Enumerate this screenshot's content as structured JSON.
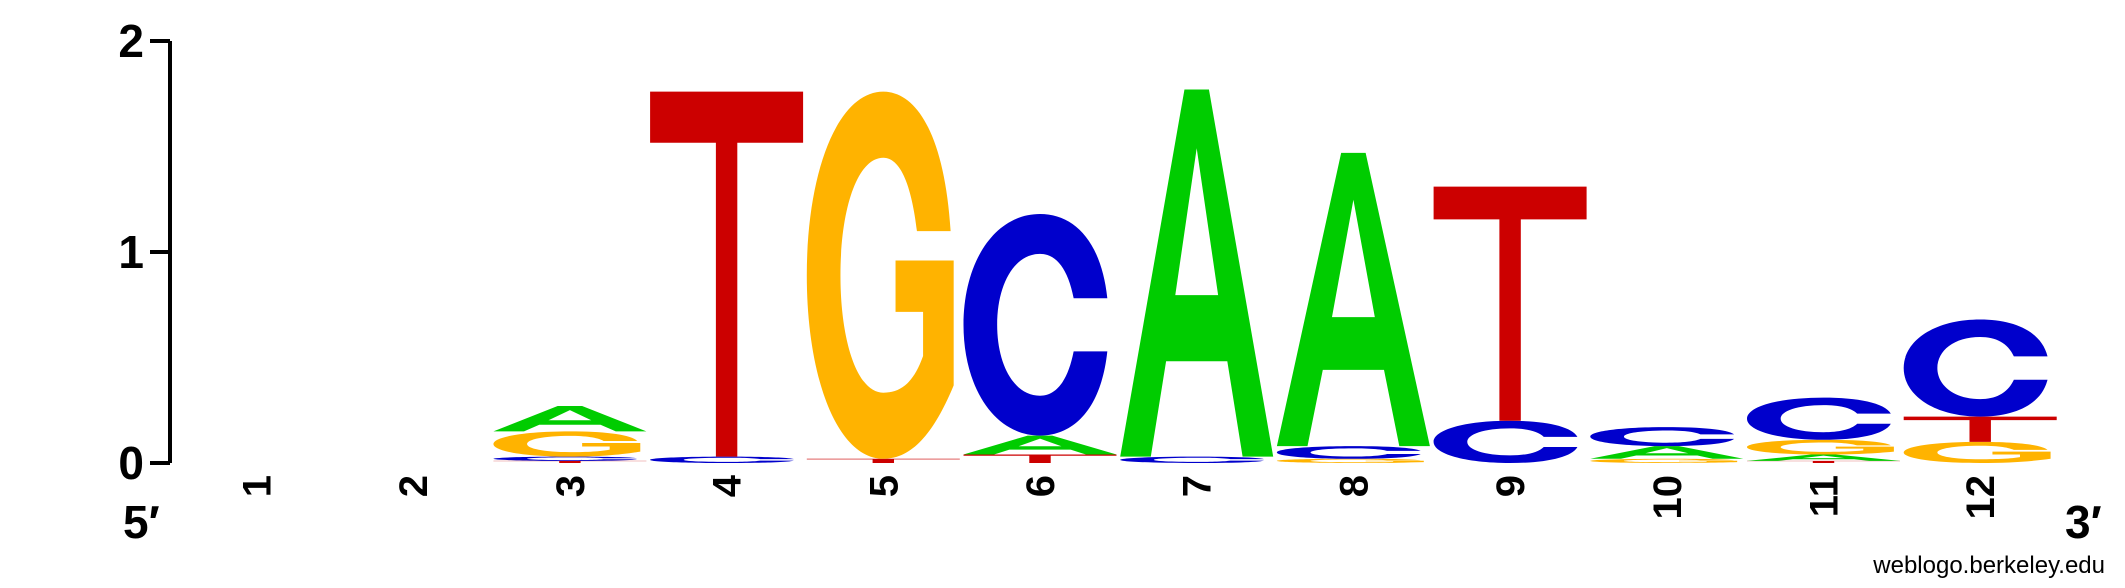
{
  "chart_data": {
    "type": "sequence-logo",
    "ylim": [
      0,
      2
    ],
    "y_ticks": [
      "0",
      "1",
      "2"
    ],
    "x_ticks": [
      "1",
      "2",
      "3",
      "4",
      "5",
      "6",
      "7",
      "8",
      "9",
      "10",
      "11",
      "12"
    ],
    "left_end_label": "5′",
    "right_end_label": "3′",
    "colors": {
      "A": "#00cc00",
      "C": "#0000cc",
      "G": "#ffb300",
      "T": "#cc0000"
    },
    "positions": [
      {
        "stack": []
      },
      {
        "stack": []
      },
      {
        "stack": [
          {
            "letter": "T",
            "bits": 0.01
          },
          {
            "letter": "C",
            "bits": 0.02
          },
          {
            "letter": "G",
            "bits": 0.12
          },
          {
            "letter": "A",
            "bits": 0.12
          }
        ]
      },
      {
        "stack": [
          {
            "letter": "C",
            "bits": 0.03
          },
          {
            "letter": "T",
            "bits": 1.73
          }
        ]
      },
      {
        "stack": [
          {
            "letter": "T",
            "bits": 0.02
          },
          {
            "letter": "G",
            "bits": 1.74
          }
        ]
      },
      {
        "stack": [
          {
            "letter": "T",
            "bits": 0.04
          },
          {
            "letter": "A",
            "bits": 0.09
          },
          {
            "letter": "C",
            "bits": 1.05
          }
        ]
      },
      {
        "stack": [
          {
            "letter": "C",
            "bits": 0.03
          },
          {
            "letter": "A",
            "bits": 1.74
          }
        ]
      },
      {
        "stack": [
          {
            "letter": "G",
            "bits": 0.02
          },
          {
            "letter": "C",
            "bits": 0.06
          },
          {
            "letter": "A",
            "bits": 1.39
          }
        ]
      },
      {
        "stack": [
          {
            "letter": "C",
            "bits": 0.2
          },
          {
            "letter": "T",
            "bits": 1.11
          }
        ]
      },
      {
        "stack": [
          {
            "letter": "G",
            "bits": 0.02
          },
          {
            "letter": "A",
            "bits": 0.06
          },
          {
            "letter": "C",
            "bits": 0.09
          }
        ]
      },
      {
        "stack": [
          {
            "letter": "T",
            "bits": 0.01
          },
          {
            "letter": "A",
            "bits": 0.03
          },
          {
            "letter": "G",
            "bits": 0.07
          },
          {
            "letter": "C",
            "bits": 0.2
          }
        ]
      },
      {
        "stack": [
          {
            "letter": "G",
            "bits": 0.1
          },
          {
            "letter": "T",
            "bits": 0.12
          },
          {
            "letter": "C",
            "bits": 0.46
          }
        ]
      }
    ]
  },
  "credit": "weblogo.berkeley.edu"
}
